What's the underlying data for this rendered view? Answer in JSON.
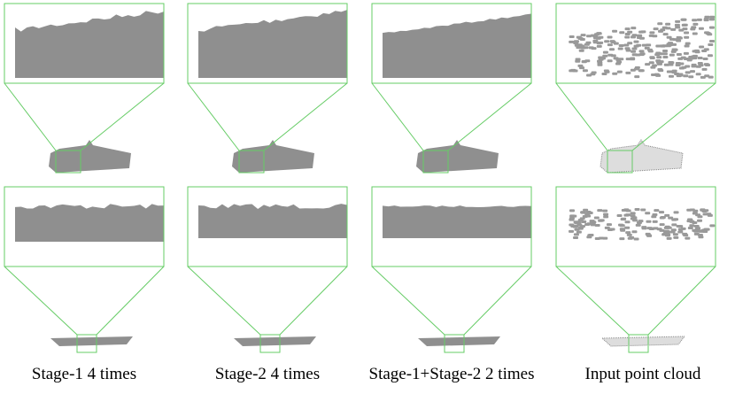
{
  "captions": [
    "Stage-1 4 times",
    "Stage-2 4 times",
    "Stage-1+Stage-2 2 times",
    "Input point cloud"
  ]
}
